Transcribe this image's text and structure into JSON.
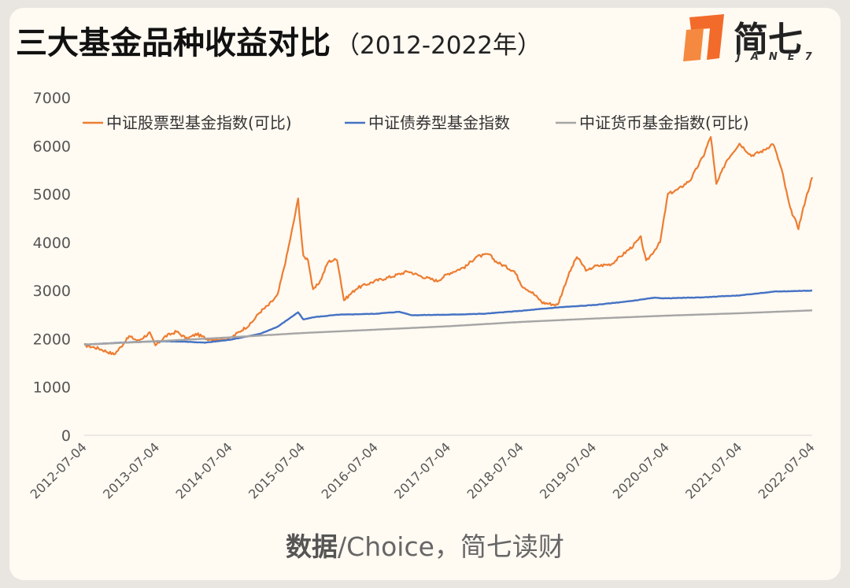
{
  "header": {
    "title": "三大基金品种收益对比",
    "subtitle": "（2012-2022年）"
  },
  "logo": {
    "cn": "简七",
    "en": "JANE7"
  },
  "source": {
    "prefix": "数据",
    "rest": "/Choice，简七读财"
  },
  "colors": {
    "stock": "#ed7d31",
    "bond": "#4472c4",
    "money": "#a5a5a5"
  },
  "chart_data": {
    "type": "line",
    "title": "",
    "xlabel": "",
    "ylabel": "",
    "ylim": [
      0,
      7000
    ],
    "yticks": [
      0,
      1000,
      2000,
      3000,
      4000,
      5000,
      6000,
      7000
    ],
    "xticks": [
      "2012-07-04",
      "2013-07-04",
      "2014-07-04",
      "2015-07-04",
      "2016-07-04",
      "2017-07-04",
      "2018-07-04",
      "2019-07-04",
      "2020-07-04",
      "2021-07-04",
      "2022-07-04"
    ],
    "grid": false,
    "legend": "top",
    "series": [
      {
        "name": "中证股票型基金指数(可比)",
        "color": "#ed7d31",
        "points": [
          [
            "2012-07-04",
            1870
          ],
          [
            "2012-09-15",
            1800
          ],
          [
            "2012-11-30",
            1680
          ],
          [
            "2012-12-20",
            1760
          ],
          [
            "2013-02-15",
            2050
          ],
          [
            "2013-04-01",
            1960
          ],
          [
            "2013-05-28",
            2120
          ],
          [
            "2013-06-26",
            1860
          ],
          [
            "2013-08-15",
            2050
          ],
          [
            "2013-10-10",
            2150
          ],
          [
            "2013-12-01",
            2000
          ],
          [
            "2014-01-20",
            2100
          ],
          [
            "2014-03-10",
            2000
          ],
          [
            "2014-05-01",
            1990
          ],
          [
            "2014-07-04",
            2000
          ],
          [
            "2014-09-01",
            2180
          ],
          [
            "2014-10-15",
            2300
          ],
          [
            "2014-12-01",
            2550
          ],
          [
            "2015-01-15",
            2700
          ],
          [
            "2015-03-01",
            2900
          ],
          [
            "2015-04-15",
            3700
          ],
          [
            "2015-05-15",
            4300
          ],
          [
            "2015-06-12",
            4900
          ],
          [
            "2015-07-08",
            3700
          ],
          [
            "2015-08-01",
            3650
          ],
          [
            "2015-08-26",
            3000
          ],
          [
            "2015-10-01",
            3200
          ],
          [
            "2015-11-10",
            3600
          ],
          [
            "2015-12-25",
            3650
          ],
          [
            "2016-01-28",
            2800
          ],
          [
            "2016-04-01",
            3050
          ],
          [
            "2016-07-04",
            3200
          ],
          [
            "2016-10-01",
            3300
          ],
          [
            "2016-12-15",
            3400
          ],
          [
            "2017-02-15",
            3300
          ],
          [
            "2017-05-10",
            3200
          ],
          [
            "2017-07-04",
            3350
          ],
          [
            "2017-10-01",
            3500
          ],
          [
            "2017-11-20",
            3700
          ],
          [
            "2018-01-25",
            3750
          ],
          [
            "2018-03-01",
            3600
          ],
          [
            "2018-06-01",
            3400
          ],
          [
            "2018-07-10",
            3100
          ],
          [
            "2018-09-01",
            2950
          ],
          [
            "2018-10-20",
            2750
          ],
          [
            "2019-01-04",
            2700
          ],
          [
            "2019-02-25",
            3300
          ],
          [
            "2019-04-10",
            3700
          ],
          [
            "2019-06-01",
            3400
          ],
          [
            "2019-07-04",
            3500
          ],
          [
            "2019-10-01",
            3550
          ],
          [
            "2020-01-10",
            3900
          ],
          [
            "2020-02-25",
            4100
          ],
          [
            "2020-03-23",
            3600
          ],
          [
            "2020-06-01",
            4000
          ],
          [
            "2020-07-10",
            5000
          ],
          [
            "2020-09-01",
            5100
          ],
          [
            "2020-11-01",
            5300
          ],
          [
            "2021-01-05",
            5800
          ],
          [
            "2021-02-10",
            6200
          ],
          [
            "2021-03-10",
            5200
          ],
          [
            "2021-05-01",
            5700
          ],
          [
            "2021-07-04",
            6050
          ],
          [
            "2021-09-01",
            5800
          ],
          [
            "2021-11-01",
            5900
          ],
          [
            "2021-12-20",
            6050
          ],
          [
            "2022-02-01",
            5500
          ],
          [
            "2022-03-15",
            4700
          ],
          [
            "2022-04-26",
            4300
          ],
          [
            "2022-06-01",
            4900
          ],
          [
            "2022-07-04",
            5350
          ]
        ]
      },
      {
        "name": "中证债券型基金指数",
        "color": "#4472c4",
        "points": [
          [
            "2012-07-04",
            1880
          ],
          [
            "2013-01-01",
            1920
          ],
          [
            "2013-07-04",
            1950
          ],
          [
            "2013-12-01",
            1940
          ],
          [
            "2014-03-01",
            1920
          ],
          [
            "2014-07-04",
            1980
          ],
          [
            "2014-12-01",
            2100
          ],
          [
            "2015-03-01",
            2250
          ],
          [
            "2015-06-12",
            2550
          ],
          [
            "2015-07-08",
            2400
          ],
          [
            "2015-09-01",
            2450
          ],
          [
            "2016-01-01",
            2500
          ],
          [
            "2016-07-04",
            2520
          ],
          [
            "2016-11-01",
            2560
          ],
          [
            "2017-01-01",
            2490
          ],
          [
            "2017-07-04",
            2500
          ],
          [
            "2018-01-01",
            2520
          ],
          [
            "2018-07-04",
            2580
          ],
          [
            "2019-01-01",
            2650
          ],
          [
            "2019-07-04",
            2700
          ],
          [
            "2020-01-01",
            2780
          ],
          [
            "2020-05-01",
            2850
          ],
          [
            "2020-07-04",
            2840
          ],
          [
            "2021-01-01",
            2860
          ],
          [
            "2021-07-04",
            2900
          ],
          [
            "2022-01-01",
            2980
          ],
          [
            "2022-07-04",
            3000
          ]
        ]
      },
      {
        "name": "中证货币基金指数(可比)",
        "color": "#a5a5a5",
        "points": [
          [
            "2012-07-04",
            1880
          ],
          [
            "2013-07-04",
            1950
          ],
          [
            "2014-07-04",
            2030
          ],
          [
            "2015-07-04",
            2120
          ],
          [
            "2016-07-04",
            2190
          ],
          [
            "2017-07-04",
            2260
          ],
          [
            "2018-07-04",
            2350
          ],
          [
            "2019-07-04",
            2420
          ],
          [
            "2020-07-04",
            2480
          ],
          [
            "2021-07-04",
            2530
          ],
          [
            "2022-07-04",
            2590
          ]
        ]
      }
    ]
  }
}
